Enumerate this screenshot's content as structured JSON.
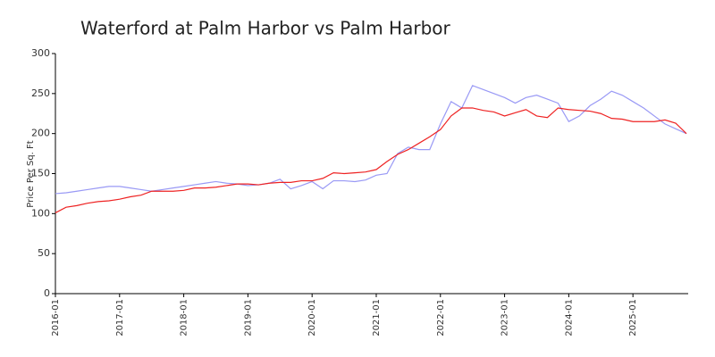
{
  "chart_data": {
    "type": "line",
    "title": "Waterford at Palm Harbor vs Palm Harbor",
    "y_label": "Price Per Sq. Ft",
    "x": [
      "2016-01",
      "2016-03",
      "2016-05",
      "2016-07",
      "2016-09",
      "2016-11",
      "2017-01",
      "2017-03",
      "2017-05",
      "2017-07",
      "2017-09",
      "2017-11",
      "2018-01",
      "2018-03",
      "2018-05",
      "2018-07",
      "2018-09",
      "2018-11",
      "2019-01",
      "2019-03",
      "2019-05",
      "2019-07",
      "2019-09",
      "2019-11",
      "2020-01",
      "2020-03",
      "2020-05",
      "2020-07",
      "2020-09",
      "2020-11",
      "2021-01",
      "2021-03",
      "2021-05",
      "2021-07",
      "2021-09",
      "2021-11",
      "2022-01",
      "2022-03",
      "2022-05",
      "2022-07",
      "2022-09",
      "2022-11",
      "2023-01",
      "2023-03",
      "2023-05",
      "2023-07",
      "2023-09",
      "2023-11",
      "2024-01",
      "2024-03",
      "2024-05",
      "2024-07",
      "2024-09",
      "2024-11",
      "2025-01",
      "2025-03",
      "2025-05",
      "2025-07",
      "2025-09",
      "2025-11"
    ],
    "series": [
      {
        "color": "#9999f5",
        "values": [
          125,
          126,
          128,
          130,
          132,
          134,
          134,
          132,
          130,
          128,
          130,
          132,
          134,
          136,
          138,
          140,
          138,
          137,
          135,
          136,
          138,
          143,
          131,
          135,
          140,
          131,
          141,
          141,
          140,
          142,
          148,
          150,
          175,
          183,
          180,
          180,
          212,
          240,
          232,
          260,
          255,
          250,
          245,
          238,
          245,
          248,
          243,
          238,
          215,
          222,
          235,
          243,
          253,
          248,
          240,
          232,
          222,
          212,
          206,
          200
        ]
      },
      {
        "color": "#ee2222",
        "values": [
          101,
          108,
          110,
          113,
          115,
          116,
          118,
          121,
          123,
          128,
          128,
          128,
          129,
          132,
          132,
          133,
          135,
          137,
          137,
          136,
          138,
          139,
          139,
          141,
          141,
          144,
          151,
          150,
          151,
          152,
          155,
          165,
          174,
          180,
          188,
          196,
          205,
          222,
          232,
          232,
          229,
          227,
          222,
          226,
          230,
          222,
          220,
          232,
          230,
          229,
          228,
          225,
          219,
          218,
          215,
          215,
          215,
          217,
          213,
          200
        ]
      }
    ],
    "xticks": [
      "2016-01",
      "2017-01",
      "2018-01",
      "2019-01",
      "2020-01",
      "2021-01",
      "2022-01",
      "2023-01",
      "2024-01",
      "2025-01"
    ],
    "ylim": [
      0,
      300
    ],
    "yticks": [
      0,
      50,
      100,
      150,
      200,
      250,
      300
    ]
  }
}
